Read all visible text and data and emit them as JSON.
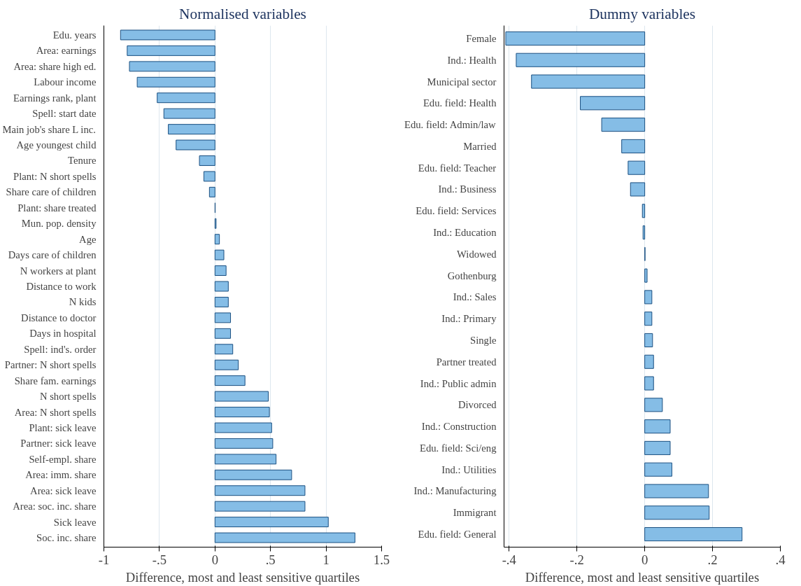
{
  "chart_data": [
    {
      "type": "bar",
      "orientation": "horizontal",
      "title": "Normalised variables",
      "xlabel": "Difference, most and least sensitive quartiles",
      "color": "#85bde6",
      "grid": "x",
      "xlim": [
        -1,
        1.5
      ],
      "xticks": [
        {
          "value": -1,
          "label": "-1"
        },
        {
          "value": -0.5,
          "label": "-.5"
        },
        {
          "value": 0,
          "label": "0"
        },
        {
          "value": 0.5,
          "label": ".5"
        },
        {
          "value": 1,
          "label": "1"
        },
        {
          "value": 1.5,
          "label": "1.5"
        }
      ],
      "categories": [
        "Edu. years",
        "Area: earnings",
        "Area: share high ed.",
        "Labour income",
        "Earnings rank, plant",
        "Spell: start date",
        "Main job's share L inc.",
        "Age youngest child",
        "Tenure",
        "Plant: N short spells",
        "Share care of children",
        "Plant: share treated",
        "Mun. pop. density",
        "Age",
        "Days care of children",
        "N workers at plant",
        "Distance to work",
        "N kids",
        "Distance to doctor",
        "Days in hospital",
        "Spell: ind's. order",
        "Partner: N short spells",
        "Share fam. earnings",
        "N short spells",
        "Area: N short spells",
        "Plant: sick leave",
        "Partner: sick leave",
        "Self-empl. share",
        "Area: imm. share",
        "Area: sick leave",
        "Area: soc. inc. share",
        "Sick leave",
        "Soc. inc. share"
      ],
      "values": [
        -0.85,
        -0.79,
        -0.77,
        -0.7,
        -0.52,
        -0.46,
        -0.42,
        -0.35,
        -0.14,
        -0.1,
        -0.05,
        0.002,
        0.01,
        0.04,
        0.08,
        0.1,
        0.12,
        0.12,
        0.14,
        0.14,
        0.16,
        0.21,
        0.27,
        0.48,
        0.49,
        0.51,
        0.52,
        0.55,
        0.69,
        0.81,
        0.81,
        1.02,
        1.26
      ]
    },
    {
      "type": "bar",
      "orientation": "horizontal",
      "title": "Dummy variables",
      "xlabel": "Difference, most and least sensitive quartiles",
      "color": "#85bde6",
      "grid": "x",
      "xlim": [
        -0.415,
        0.4
      ],
      "xticks": [
        {
          "value": -0.4,
          "label": "-.4"
        },
        {
          "value": -0.2,
          "label": "-.2"
        },
        {
          "value": 0,
          "label": "0"
        },
        {
          "value": 0.2,
          "label": ".2"
        },
        {
          "value": 0.4,
          "label": ".4"
        }
      ],
      "categories": [
        "Female",
        "Ind.: Health",
        "Municipal sector",
        "Edu. field: Health",
        "Edu. field: Admin/law",
        "Married",
        "Edu. field: Teacher",
        "Ind.: Business",
        "Edu. field: Services",
        "Ind.: Education",
        "Widowed",
        "Gothenburg",
        "Ind.: Sales",
        "Ind.: Primary",
        "Single",
        "Partner treated",
        "Ind.: Public admin",
        "Divorced",
        "Ind.: Construction",
        "Edu. field: Sci/eng",
        "Ind.: Utilities",
        "Ind.: Manufacturing",
        "Immigrant",
        "Edu. field: General"
      ],
      "values": [
        -0.41,
        -0.379,
        -0.334,
        -0.19,
        -0.127,
        -0.068,
        -0.049,
        -0.042,
        -0.007,
        -0.005,
        0.001,
        0.007,
        0.021,
        0.021,
        0.023,
        0.026,
        0.026,
        0.052,
        0.075,
        0.075,
        0.08,
        0.188,
        0.19,
        0.287
      ]
    }
  ]
}
